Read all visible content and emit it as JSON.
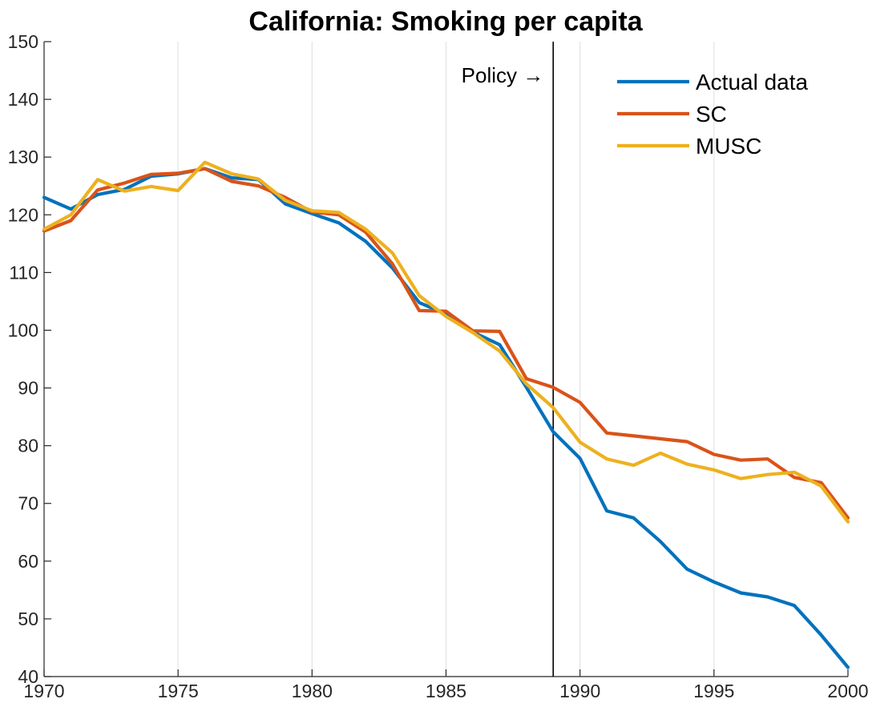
{
  "chart_data": {
    "type": "line",
    "title": "California: Smoking per capita",
    "xlabel": "",
    "ylabel": "",
    "xlim": [
      1970,
      2000
    ],
    "ylim": [
      40,
      150
    ],
    "x_ticks": [
      1970,
      1975,
      1980,
      1985,
      1990,
      1995,
      2000
    ],
    "y_ticks": [
      40,
      50,
      60,
      70,
      80,
      90,
      100,
      110,
      120,
      130,
      140,
      150
    ],
    "grid": {
      "x": true,
      "y": false
    },
    "legend_position": "top-right",
    "annotation": {
      "label": "Policy →",
      "x": 1989
    },
    "x": [
      1970,
      1971,
      1972,
      1973,
      1974,
      1975,
      1976,
      1977,
      1978,
      1979,
      1980,
      1981,
      1982,
      1983,
      1984,
      1985,
      1986,
      1987,
      1988,
      1989,
      1990,
      1991,
      1992,
      1993,
      1994,
      1995,
      1996,
      1997,
      1998,
      1999,
      2000
    ],
    "series": [
      {
        "name": "Actual data",
        "color": "#0072BD",
        "values": [
          123.0,
          121.0,
          123.5,
          124.4,
          126.7,
          127.1,
          128.0,
          126.4,
          126.1,
          121.9,
          120.2,
          118.6,
          115.4,
          110.8,
          104.8,
          102.8,
          99.7,
          97.5,
          90.1,
          82.4,
          77.8,
          68.7,
          67.5,
          63.4,
          58.6,
          56.4,
          54.5,
          53.8,
          52.3,
          47.2,
          41.6
        ]
      },
      {
        "name": "SC",
        "color": "#D95319",
        "values": [
          117.2,
          119.0,
          124.3,
          125.5,
          127.0,
          127.2,
          128.0,
          125.8,
          125.0,
          123.0,
          120.5,
          120.0,
          117.0,
          111.5,
          103.4,
          103.3,
          99.9,
          99.8,
          91.6,
          90.1,
          87.5,
          82.2,
          81.7,
          81.2,
          80.7,
          78.5,
          77.5,
          77.7,
          74.5,
          73.6,
          67.5
        ]
      },
      {
        "name": "MUSC",
        "color": "#EDB120",
        "values": [
          117.5,
          120.0,
          126.1,
          124.1,
          124.9,
          124.2,
          129.1,
          127.1,
          126.2,
          122.5,
          120.7,
          120.4,
          117.5,
          113.4,
          106.0,
          102.4,
          99.6,
          96.4,
          90.7,
          86.6,
          80.6,
          77.7,
          76.6,
          78.7,
          76.8,
          75.8,
          74.3,
          75.0,
          75.4,
          73.0,
          66.8
        ]
      }
    ]
  }
}
